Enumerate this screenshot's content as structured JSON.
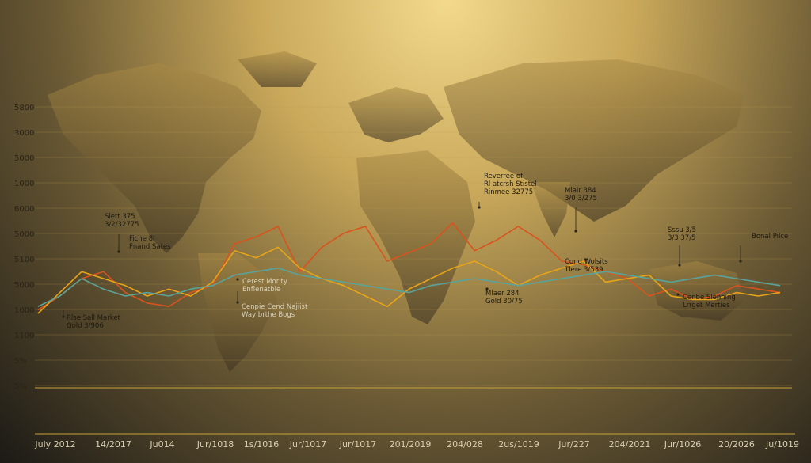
{
  "chart_data": {
    "type": "line",
    "title": "",
    "xlabel": "",
    "ylabel": "",
    "y_tick_labels": [
      "5800",
      "3000",
      "5000",
      "1000",
      "6000",
      "5000",
      "5100",
      "5000",
      "1000",
      "1100",
      "5%",
      "5%"
    ],
    "x_tick_labels": [
      "July 2012",
      "14/2017",
      "Ju014",
      "Jur/1018",
      "1s/1016",
      "Jur/1017",
      "Jur/1017",
      "201/2019",
      "204/028",
      "2us/1019",
      "Jur/227",
      "204/2021",
      "Jur/1026",
      "20/2026",
      "Ju/1019"
    ],
    "grid": true,
    "series": [
      {
        "color": "#d9531e",
        "values": [
          22,
          30,
          40,
          44,
          32,
          26,
          24,
          32,
          36,
          60,
          64,
          70,
          44,
          58,
          66,
          70,
          50,
          55,
          60,
          72,
          56,
          62,
          70,
          62,
          50,
          48,
          44,
          40,
          30,
          34,
          28,
          30,
          36,
          34,
          32
        ]
      },
      {
        "color": "#e8a418",
        "values": [
          20,
          32,
          44,
          40,
          36,
          30,
          34,
          30,
          38,
          56,
          52,
          58,
          46,
          40,
          36,
          30,
          24,
          34,
          40,
          46,
          50,
          44,
          36,
          42,
          46,
          50,
          38,
          40,
          42,
          30,
          28,
          28,
          32,
          30,
          32
        ]
      },
      {
        "color": "#5aa39a",
        "values": [
          24,
          30,
          40,
          34,
          30,
          32,
          30,
          34,
          36,
          42,
          44,
          46,
          42,
          40,
          38,
          36,
          34,
          32,
          36,
          38,
          40,
          38,
          36,
          38,
          40,
          42,
          44,
          42,
          40,
          38,
          40,
          42,
          40,
          38,
          36
        ]
      }
    ],
    "annotations": [
      {
        "text": [
          "Slett 375",
          "3/2/32775"
        ]
      },
      {
        "text": [
          "Fiche 8l",
          "Fnand Sates"
        ]
      },
      {
        "text": [
          "Rlse Sall Market",
          "Gold 3/906"
        ]
      },
      {
        "text": [
          "Cerest Mority",
          "Enflenatble"
        ]
      },
      {
        "text": [
          "Cenpie Cend Najiist",
          "Way brthe Bogs"
        ]
      },
      {
        "text": [
          "Reverree of",
          "Rl atcrsh Stistel",
          "Rinmee 32775"
        ]
      },
      {
        "text": [
          "Mlaer 284",
          "Gold 30/75"
        ]
      },
      {
        "text": [
          "Mlair 384",
          "3/0 3/275"
        ]
      },
      {
        "text": [
          "Cond Wolsits",
          "Tlere 3/539"
        ]
      },
      {
        "text": [
          "Sssu 3/5",
          "3/3 37/5"
        ]
      },
      {
        "text": [
          "Cenbe Slenning",
          "Lrrget Merties"
        ]
      },
      {
        "text": [
          "Bonal Pilce"
        ]
      }
    ]
  }
}
